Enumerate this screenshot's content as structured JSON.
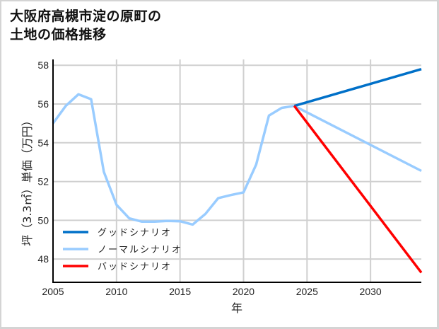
{
  "title": {
    "line1": "大阪府高槻市淀の原町の",
    "line2": "土地の価格推移"
  },
  "chart_data": {
    "type": "line",
    "title": "大阪府高槻市淀の原町の土地の価格推移",
    "xlabel": "年",
    "ylabel": "坪（3.3㎡）単価（万円）",
    "xlim": [
      2005,
      2034
    ],
    "ylim": [
      46.8,
      58.3
    ],
    "xticks": [
      2005,
      2010,
      2015,
      2020,
      2025,
      2030
    ],
    "yticks": [
      48,
      50,
      52,
      54,
      56,
      58
    ],
    "grid": true,
    "legend_position": "lower left",
    "series": [
      {
        "name": "グッドシナリオ",
        "color": "#0070c8",
        "x": [
          2024,
          2034
        ],
        "values": [
          55.9,
          57.8
        ]
      },
      {
        "name": "ノーマルシナリオ",
        "color": "#99ccff",
        "x": [
          2005,
          2006,
          2007,
          2008,
          2009,
          2010,
          2011,
          2012,
          2013,
          2014,
          2015,
          2016,
          2017,
          2018,
          2019,
          2020,
          2021,
          2022,
          2023,
          2024,
          2034
        ],
        "values": [
          55.0,
          55.9,
          56.5,
          56.25,
          52.5,
          50.8,
          50.1,
          49.93,
          49.93,
          49.97,
          49.95,
          49.78,
          50.33,
          51.14,
          51.3,
          51.44,
          52.88,
          55.4,
          55.8,
          55.9,
          52.55
        ]
      },
      {
        "name": "バッドシナリオ",
        "color": "#ff0000",
        "x": [
          2024,
          2034
        ],
        "values": [
          55.9,
          47.3
        ]
      }
    ]
  },
  "axes": {
    "xlabel": "年",
    "ylabel": "坪（3.3㎡）単価（万円）"
  },
  "legend": [
    {
      "label": "グッドシナリオ",
      "color": "#0070c8"
    },
    {
      "label": "ノーマルシナリオ",
      "color": "#99ccff"
    },
    {
      "label": "バッドシナリオ",
      "color": "#ff0000"
    }
  ]
}
